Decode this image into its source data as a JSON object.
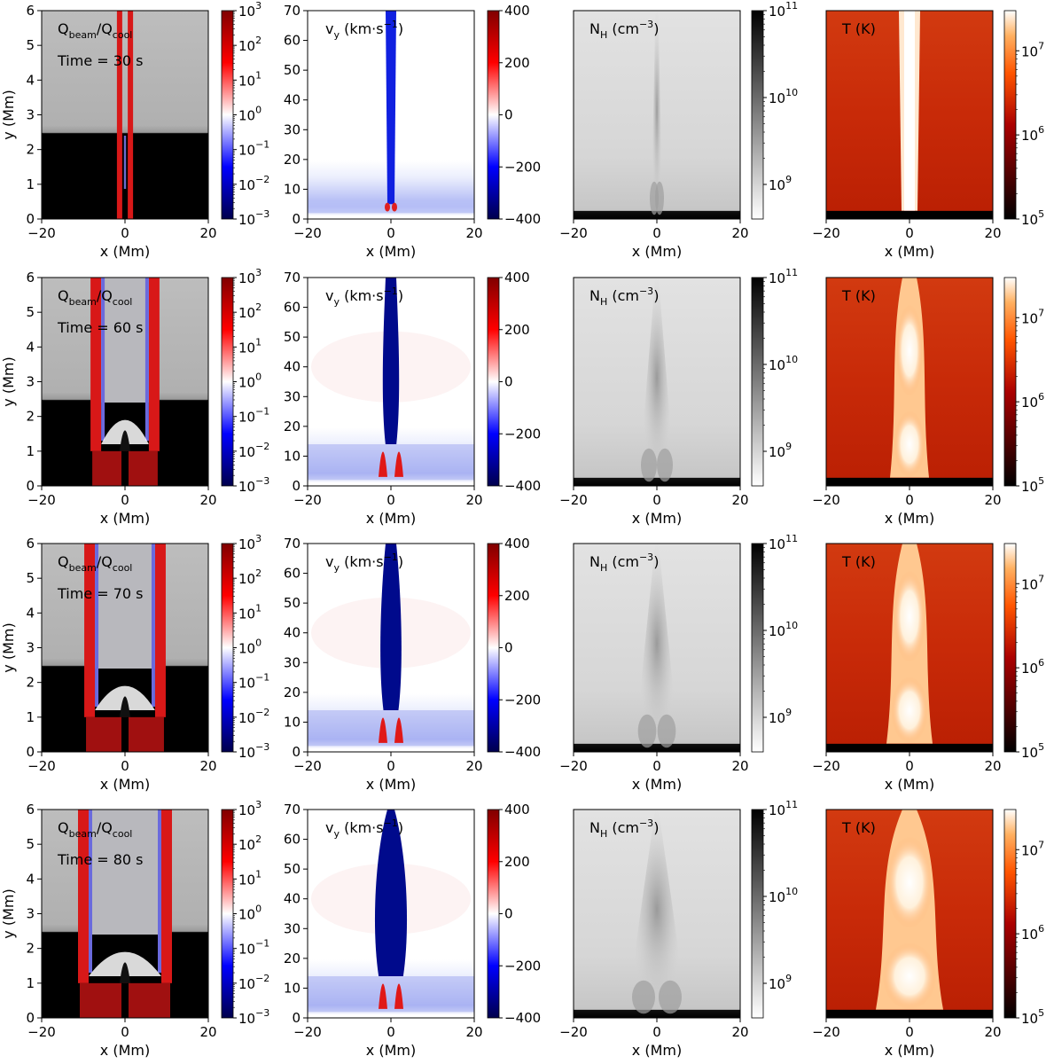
{
  "colors": {
    "corona_gray": "#b4b4b4",
    "chromosphere": "#000000",
    "beam_red": "#d81818",
    "flow_blue": "#0000c8",
    "hot_red": "#cc2a0a",
    "hot_white": "#ffffff"
  },
  "time_label_prefix": "Time = ",
  "time_unit": " s",
  "rows": [
    {
      "time": "30"
    },
    {
      "time": "60"
    },
    {
      "time": "70"
    },
    {
      "time": "80"
    }
  ],
  "chart_data": [
    {
      "type": "heatmap",
      "quantity": "Qbeam/Qcool",
      "label_main": "Q",
      "label_sub1": "beam",
      "label_mid": "/Q",
      "label_sub2": "cool",
      "xlabel": "x (Mm)",
      "ylabel": "y (Mm)",
      "xlim": [
        -20,
        20
      ],
      "ylim": [
        0,
        6
      ],
      "xticks": [
        "−20",
        "0",
        "20"
      ],
      "yticks": [
        "0",
        "1",
        "2",
        "3",
        "4",
        "5",
        "6"
      ],
      "colorbar": {
        "scale": "log",
        "colormap": "seismic",
        "range": [
          0.001,
          1000
        ],
        "base": "10",
        "exponents": [
          "3",
          "2",
          "1",
          "0",
          "−1",
          "−2",
          "−3"
        ]
      }
    },
    {
      "type": "heatmap",
      "quantity": "vy",
      "label_main": "v",
      "label_sub": "y",
      "label_unit": " (km·s",
      "label_sup": "−1",
      "label_close": ")",
      "xlabel": "x (Mm)",
      "xlim": [
        -20,
        20
      ],
      "ylim": [
        0,
        70
      ],
      "xticks": [
        "−20",
        "0",
        "20"
      ],
      "yticks": [
        "0",
        "10",
        "20",
        "30",
        "40",
        "50",
        "60",
        "70"
      ],
      "colorbar": {
        "scale": "linear",
        "colormap": "seismic",
        "range": [
          -400,
          400
        ],
        "ticks": [
          "400",
          "200",
          "0",
          "−200",
          "−400"
        ]
      }
    },
    {
      "type": "heatmap",
      "quantity": "NH",
      "label_main": "N",
      "label_sub": "H",
      "label_unit": " (cm",
      "label_sup": "−3",
      "label_close": ")",
      "xlabel": "x (Mm)",
      "xlim": [
        -20,
        20
      ],
      "xticks": [
        "−20",
        "0",
        "20"
      ],
      "colorbar": {
        "scale": "log",
        "colormap": "gray_r",
        "range": [
          400000000.0,
          100000000000.0
        ],
        "base": "10",
        "exponents": [
          "11",
          "10",
          "9"
        ]
      }
    },
    {
      "type": "heatmap",
      "quantity": "T",
      "label": "T (K)",
      "xlabel": "x (Mm)",
      "xlim": [
        -20,
        20
      ],
      "xticks": [
        "−20",
        "0",
        "20"
      ],
      "colorbar": {
        "scale": "log",
        "colormap": "gist_heat",
        "range": [
          100000,
          30000000
        ],
        "base": "10",
        "exponents": [
          "7",
          "6",
          "5"
        ]
      }
    }
  ]
}
